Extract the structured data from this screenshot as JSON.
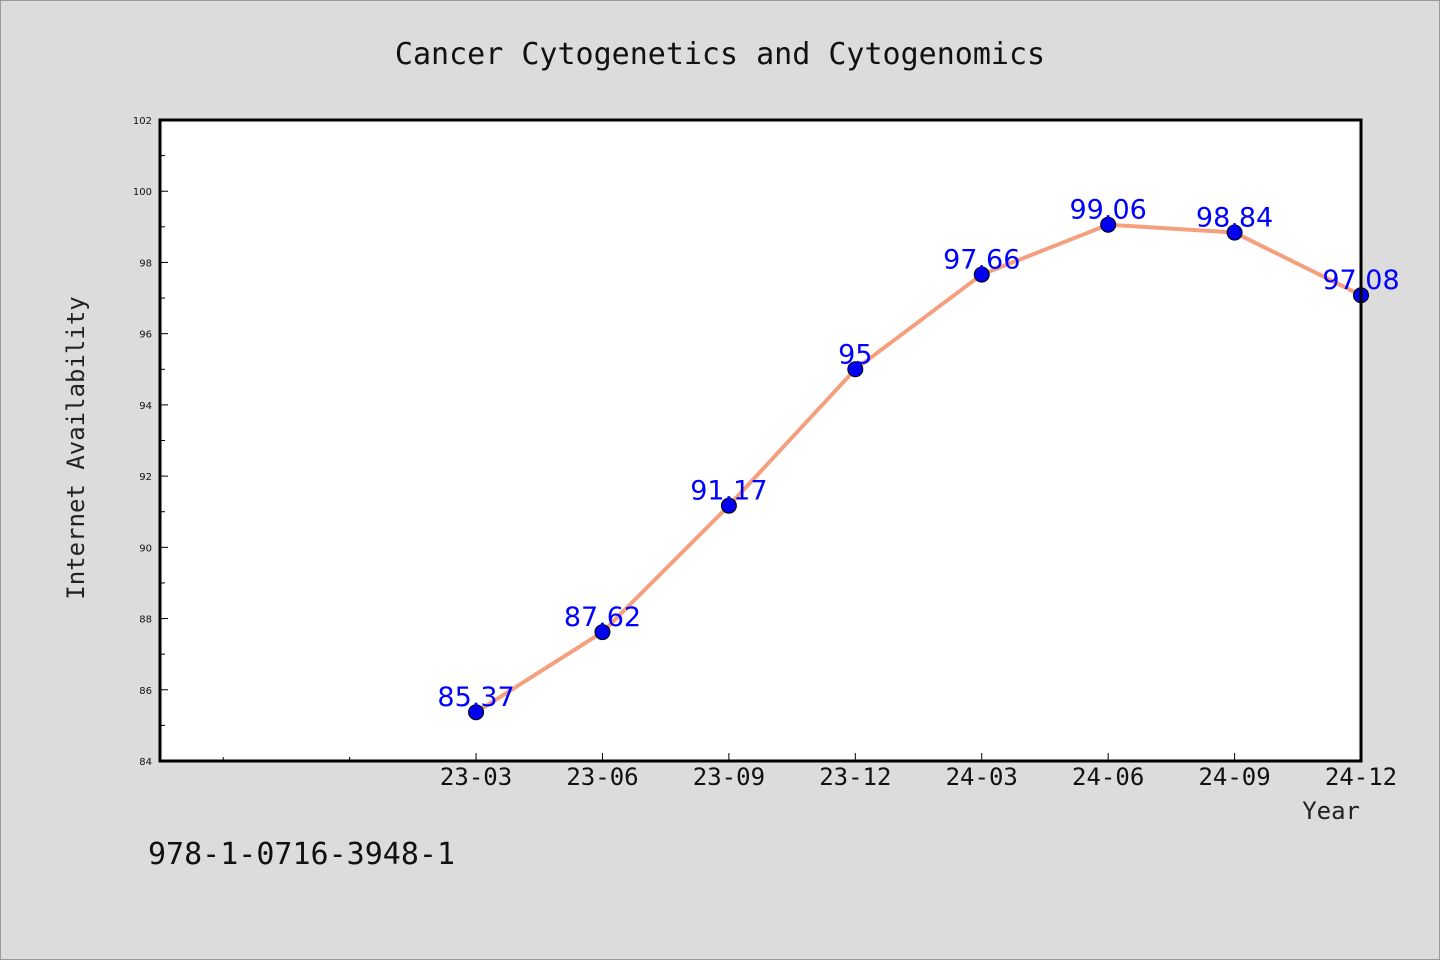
{
  "chart_data": {
    "type": "line",
    "title": "Cancer Cytogenetics and Cytogenomics",
    "xlabel": "Year",
    "ylabel": "Internet Availability",
    "categories": [
      "23-03",
      "23-06",
      "23-09",
      "23-12",
      "24-03",
      "24-06",
      "24-09",
      "24-12"
    ],
    "series": [
      {
        "values": [
          85.37,
          87.62,
          91.17,
          95,
          97.66,
          99.06,
          98.84,
          97.08
        ],
        "data_labels": [
          "85.37",
          "87.62",
          "91.17",
          "95",
          "97.66",
          "99.06",
          "98.84",
          "97.08"
        ]
      }
    ],
    "ylim": [
      84,
      102
    ],
    "yticks": [
      84,
      86,
      88,
      90,
      92,
      94,
      96,
      98,
      100,
      102
    ],
    "ytick_labels": [
      "84",
      "86",
      "88",
      "90",
      "92",
      "94",
      "96",
      "98",
      "100",
      "102"
    ],
    "xlim_slots": [
      0,
      9.5
    ],
    "grid": false,
    "legend": "none",
    "colors": {
      "line": "#f4a07f",
      "marker": "#0000ee",
      "label": "#0000ff",
      "plot_background": "#ffffff",
      "figure_background": "#dcdcdc"
    }
  },
  "footer": {
    "isbn": "978-1-0716-3948-1"
  }
}
